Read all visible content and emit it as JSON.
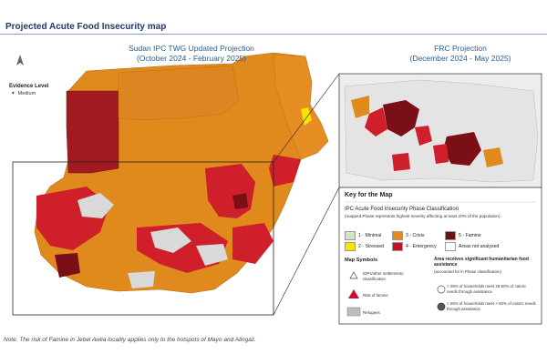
{
  "title": "Projected Acute Food Insecurity map",
  "left_map": {
    "title_line1": "Sudan IPC TWG Updated Projection",
    "title_line2": "(October 2024 - February 2025)",
    "evidence_label": "Evidence Level",
    "evidence_item": "Medium"
  },
  "right_map": {
    "title_line1": "FRC Projection",
    "title_line2": "(December 2024 - May 2025)"
  },
  "key": {
    "title": "Key for the Map",
    "subtitle": "IPC Acute Food Insecurity Phase Classification",
    "mapped_note": "(mapped Phase represents highest severity affecting at least 20% of the population)",
    "phases": [
      {
        "label": "1 - Minimal",
        "color": "#cfe6c2"
      },
      {
        "label": "2 - Stressed",
        "color": "#f5e600"
      },
      {
        "label": "3 - Crisis",
        "color": "#e88a1a"
      },
      {
        "label": "4 - Emergency",
        "color": "#c8102e"
      },
      {
        "label": "5 - Famine",
        "color": "#6e0f14"
      },
      {
        "label": "Areas not analysed",
        "color": "#ffffff"
      }
    ],
    "symbols_title": "Map Symbols",
    "idp_label": "IDPs/other settlements classification",
    "famine_risk_label": "Risk of famine",
    "refugees_label": "Refugees",
    "assistance_title": "Area receives significant humanitarian food assistance",
    "assistance_sub": "(accounted for in Phase classification)",
    "assist_1": "> 25% of households meet 25-50% of caloric needs through assistance",
    "assist_2": "> 25% of households meet > 50% of caloric needs through assistance"
  },
  "note": "Note: The risk of Famine in Jebel Awlia locality applies only to the hotspots of Mayo and Alingaz.",
  "colors": {
    "crisis": "#e08a1e",
    "emergency": "#cf1f2a",
    "famine": "#7a0f18",
    "minimal": "#d9d9d9",
    "title_blue": "#1f3a63",
    "projection_blue": "#2a5d8f"
  }
}
